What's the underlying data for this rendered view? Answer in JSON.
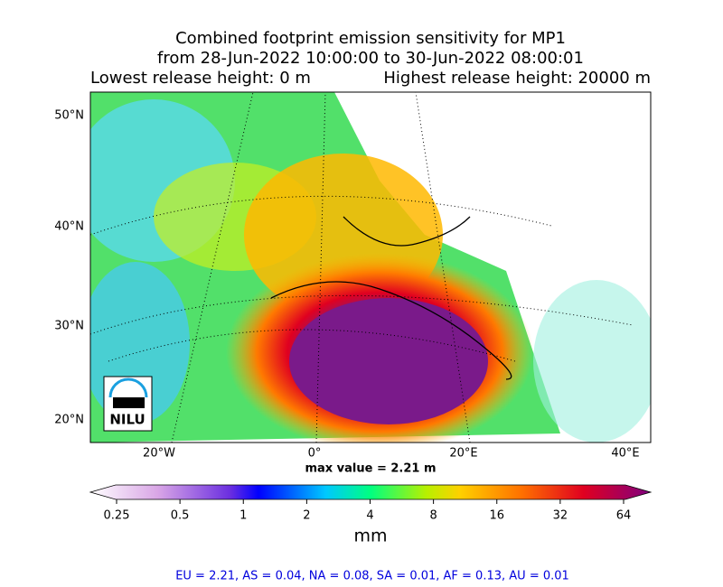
{
  "title_lines": [
    "Combined footprint emission sensitivity for MP1",
    "from 28-Jun-2022 10:00:00 to 30-Jun-2022 08:00:01"
  ],
  "release_heights": {
    "lowest": "Lowest release height: 0 m",
    "highest": "Highest release height: 20000 m"
  },
  "map": {
    "lat_labels": [
      "50°N",
      "40°N",
      "30°N",
      "20°N"
    ],
    "lon_labels": [
      "20°W",
      "0°",
      "20°E",
      "40°E"
    ],
    "logo": "NILU"
  },
  "max_value": "max value = 2.21 m",
  "colorbar": {
    "ticks": [
      0.25,
      0.5,
      1,
      2,
      4,
      8,
      16,
      32,
      64
    ],
    "unit": "mm",
    "log_scale": true
  },
  "footer": "EU = 2.21,  AS = 0.04,  NA = 0.08,  SA = 0.01,  AF = 0.13,  AU = 0.01"
}
